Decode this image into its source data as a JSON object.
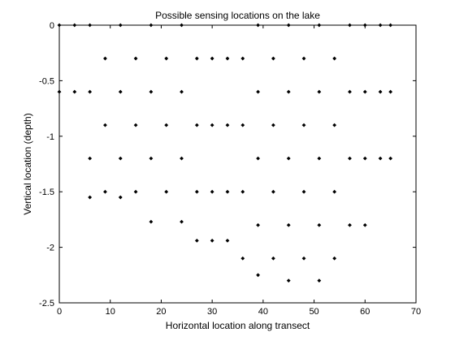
{
  "chart_data": {
    "type": "scatter",
    "title": "Possible sensing locations on the lake",
    "xlabel": "Horizontal location along transect",
    "ylabel": "Vertical location (depth)",
    "xlim": [
      0,
      70
    ],
    "ylim": [
      -2.5,
      0
    ],
    "xticks": [
      0,
      10,
      20,
      30,
      40,
      50,
      60,
      70
    ],
    "yticks": [
      0,
      -0.5,
      -1,
      -1.5,
      -2,
      -2.5
    ],
    "ytick_labels": [
      "0",
      "-0.5",
      "-1",
      "-1.5",
      "-2",
      "-2.5"
    ],
    "grid": false,
    "marker_color": "#000000",
    "points": [
      [
        0,
        0
      ],
      [
        3,
        0
      ],
      [
        6,
        0
      ],
      [
        12,
        0
      ],
      [
        18,
        0
      ],
      [
        24,
        0
      ],
      [
        39,
        0
      ],
      [
        45,
        0
      ],
      [
        51,
        0
      ],
      [
        57,
        0
      ],
      [
        60,
        0
      ],
      [
        63,
        0
      ],
      [
        65,
        0
      ],
      [
        9,
        -0.3
      ],
      [
        15,
        -0.3
      ],
      [
        21,
        -0.3
      ],
      [
        27,
        -0.3
      ],
      [
        30,
        -0.3
      ],
      [
        33,
        -0.3
      ],
      [
        36,
        -0.3
      ],
      [
        42,
        -0.3
      ],
      [
        48,
        -0.3
      ],
      [
        54,
        -0.3
      ],
      [
        0,
        -0.6
      ],
      [
        3,
        -0.6
      ],
      [
        6,
        -0.6
      ],
      [
        12,
        -0.6
      ],
      [
        18,
        -0.6
      ],
      [
        24,
        -0.6
      ],
      [
        39,
        -0.6
      ],
      [
        45,
        -0.6
      ],
      [
        51,
        -0.6
      ],
      [
        57,
        -0.6
      ],
      [
        60,
        -0.6
      ],
      [
        63,
        -0.6
      ],
      [
        65,
        -0.6
      ],
      [
        9,
        -0.9
      ],
      [
        15,
        -0.9
      ],
      [
        21,
        -0.9
      ],
      [
        27,
        -0.9
      ],
      [
        30,
        -0.9
      ],
      [
        33,
        -0.9
      ],
      [
        36,
        -0.9
      ],
      [
        42,
        -0.9
      ],
      [
        48,
        -0.9
      ],
      [
        54,
        -0.9
      ],
      [
        6,
        -1.2
      ],
      [
        12,
        -1.2
      ],
      [
        18,
        -1.2
      ],
      [
        24,
        -1.2
      ],
      [
        39,
        -1.2
      ],
      [
        45,
        -1.2
      ],
      [
        51,
        -1.2
      ],
      [
        57,
        -1.2
      ],
      [
        60,
        -1.2
      ],
      [
        63,
        -1.2
      ],
      [
        65,
        -1.2
      ],
      [
        9,
        -1.5
      ],
      [
        15,
        -1.5
      ],
      [
        21,
        -1.5
      ],
      [
        27,
        -1.5
      ],
      [
        30,
        -1.5
      ],
      [
        33,
        -1.5
      ],
      [
        36,
        -1.5
      ],
      [
        42,
        -1.5
      ],
      [
        48,
        -1.5
      ],
      [
        54,
        -1.5
      ],
      [
        6,
        -1.55
      ],
      [
        12,
        -1.55
      ],
      [
        18,
        -1.77
      ],
      [
        24,
        -1.77
      ],
      [
        39,
        -1.8
      ],
      [
        45,
        -1.8
      ],
      [
        51,
        -1.8
      ],
      [
        57,
        -1.8
      ],
      [
        60,
        -1.8
      ],
      [
        27,
        -1.94
      ],
      [
        30,
        -1.94
      ],
      [
        33,
        -1.94
      ],
      [
        36,
        -2.1
      ],
      [
        42,
        -2.1
      ],
      [
        48,
        -2.1
      ],
      [
        54,
        -2.1
      ],
      [
        39,
        -2.25
      ],
      [
        45,
        -2.3
      ],
      [
        51,
        -2.3
      ]
    ]
  }
}
